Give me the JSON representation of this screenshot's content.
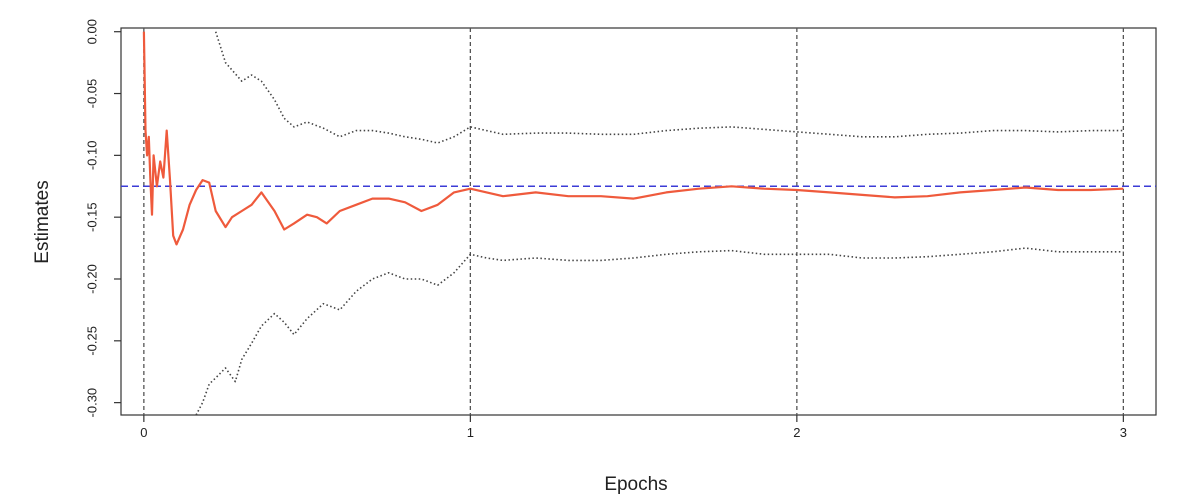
{
  "chart_data": {
    "type": "line",
    "title": "",
    "xlabel": "Epochs",
    "ylabel": "Estimates",
    "xlim": [
      -0.07,
      3.1
    ],
    "ylim": [
      -0.31,
      0.003
    ],
    "x_ticks": [
      0,
      1,
      2,
      3
    ],
    "x_tick_labels": [
      "0",
      "1",
      "2",
      "3"
    ],
    "y_ticks": [
      0.0,
      -0.05,
      -0.1,
      -0.15,
      -0.2,
      -0.25,
      -0.3
    ],
    "y_tick_labels": [
      "0.00",
      "-0.05",
      "-0.10",
      "-0.15",
      "-0.20",
      "-0.25",
      "-0.30"
    ],
    "grid": false,
    "reference_lines": {
      "horizontal": {
        "y": -0.125,
        "color": "#3b3bd6",
        "style": "dashed"
      },
      "vertical": {
        "x": [
          0,
          1,
          2,
          3
        ],
        "color": "#555555",
        "style": "dashed"
      }
    },
    "colors": {
      "estimate": "#ef5a3c",
      "bounds": "#444444"
    },
    "series": [
      {
        "style": "solid",
        "color": "#ef5a3c",
        "x": [
          0.0,
          0.005,
          0.01,
          0.015,
          0.02,
          0.025,
          0.03,
          0.04,
          0.05,
          0.06,
          0.07,
          0.08,
          0.09,
          0.1,
          0.12,
          0.14,
          0.16,
          0.18,
          0.2,
          0.22,
          0.25,
          0.27,
          0.3,
          0.33,
          0.36,
          0.4,
          0.43,
          0.46,
          0.5,
          0.53,
          0.56,
          0.6,
          0.65,
          0.7,
          0.75,
          0.8,
          0.85,
          0.9,
          0.95,
          1.0,
          1.05,
          1.1,
          1.2,
          1.3,
          1.4,
          1.5,
          1.6,
          1.7,
          1.8,
          1.9,
          2.0,
          2.1,
          2.2,
          2.3,
          2.4,
          2.5,
          2.6,
          2.7,
          2.8,
          2.9,
          3.0
        ],
        "y": [
          0.0,
          -0.08,
          -0.1,
          -0.085,
          -0.12,
          -0.148,
          -0.1,
          -0.125,
          -0.105,
          -0.118,
          -0.08,
          -0.12,
          -0.165,
          -0.172,
          -0.16,
          -0.14,
          -0.128,
          -0.12,
          -0.122,
          -0.145,
          -0.158,
          -0.15,
          -0.145,
          -0.14,
          -0.13,
          -0.145,
          -0.16,
          -0.155,
          -0.148,
          -0.15,
          -0.155,
          -0.145,
          -0.14,
          -0.135,
          -0.135,
          -0.138,
          -0.145,
          -0.14,
          -0.13,
          -0.127,
          -0.13,
          -0.133,
          -0.13,
          -0.133,
          -0.133,
          -0.135,
          -0.13,
          -0.127,
          -0.125,
          -0.127,
          -0.128,
          -0.13,
          -0.132,
          -0.134,
          -0.133,
          -0.13,
          -0.128,
          -0.126,
          -0.128,
          -0.128,
          -0.127
        ]
      },
      {
        "style": "dotted",
        "color": "#444444",
        "x": [
          0.22,
          0.25,
          0.3,
          0.33,
          0.36,
          0.4,
          0.43,
          0.46,
          0.5,
          0.55,
          0.6,
          0.65,
          0.7,
          0.75,
          0.8,
          0.85,
          0.9,
          0.95,
          1.0,
          1.05,
          1.1,
          1.2,
          1.3,
          1.4,
          1.5,
          1.6,
          1.7,
          1.8,
          1.9,
          2.0,
          2.1,
          2.2,
          2.3,
          2.4,
          2.5,
          2.6,
          2.7,
          2.8,
          2.9,
          3.0
        ],
        "y": [
          0.0,
          -0.025,
          -0.04,
          -0.035,
          -0.04,
          -0.055,
          -0.07,
          -0.077,
          -0.073,
          -0.078,
          -0.085,
          -0.08,
          -0.08,
          -0.082,
          -0.085,
          -0.087,
          -0.09,
          -0.085,
          -0.077,
          -0.08,
          -0.083,
          -0.082,
          -0.082,
          -0.083,
          -0.083,
          -0.08,
          -0.078,
          -0.077,
          -0.079,
          -0.081,
          -0.083,
          -0.085,
          -0.085,
          -0.083,
          -0.082,
          -0.08,
          -0.08,
          -0.081,
          -0.08,
          -0.08
        ]
      },
      {
        "style": "dotted",
        "color": "#444444",
        "x": [
          0.16,
          0.18,
          0.2,
          0.22,
          0.25,
          0.28,
          0.3,
          0.33,
          0.36,
          0.4,
          0.43,
          0.46,
          0.5,
          0.55,
          0.6,
          0.65,
          0.7,
          0.75,
          0.8,
          0.85,
          0.9,
          0.95,
          1.0,
          1.05,
          1.1,
          1.2,
          1.3,
          1.4,
          1.5,
          1.6,
          1.7,
          1.8,
          1.9,
          2.0,
          2.1,
          2.2,
          2.3,
          2.4,
          2.5,
          2.6,
          2.7,
          2.8,
          2.9,
          3.0
        ],
        "y": [
          -0.31,
          -0.3,
          -0.285,
          -0.28,
          -0.272,
          -0.283,
          -0.265,
          -0.252,
          -0.238,
          -0.228,
          -0.235,
          -0.245,
          -0.232,
          -0.22,
          -0.225,
          -0.21,
          -0.2,
          -0.195,
          -0.2,
          -0.2,
          -0.205,
          -0.195,
          -0.18,
          -0.183,
          -0.185,
          -0.183,
          -0.185,
          -0.185,
          -0.183,
          -0.18,
          -0.178,
          -0.177,
          -0.18,
          -0.18,
          -0.18,
          -0.183,
          -0.183,
          -0.182,
          -0.18,
          -0.178,
          -0.175,
          -0.178,
          -0.178,
          -0.178
        ]
      }
    ]
  }
}
